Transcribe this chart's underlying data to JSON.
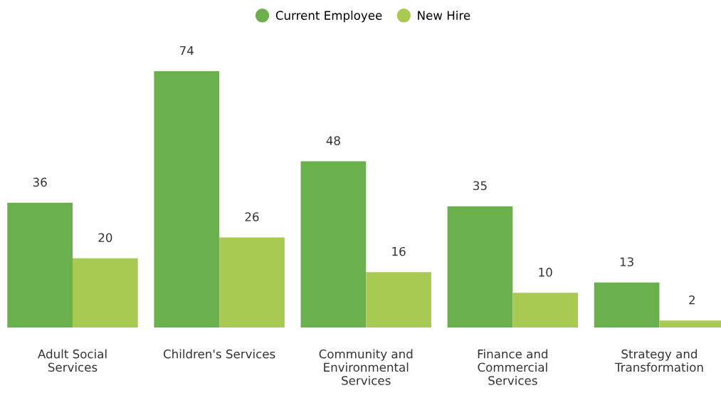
{
  "chart_data": {
    "type": "bar",
    "categories": [
      "Adult Social\nServices",
      "Children's Services",
      "Community and\nEnvironmental\nServices",
      "Finance and\nCommercial\nServices",
      "Strategy and\nTransformation"
    ],
    "series": [
      {
        "name": "Current Employee",
        "color": "#6ab04c",
        "values": [
          36,
          74,
          48,
          35,
          13
        ]
      },
      {
        "name": "New Hire",
        "color": "#a8c952",
        "values": [
          20,
          26,
          16,
          10,
          2
        ]
      }
    ],
    "data_labels": true,
    "legend": "top",
    "grid": false,
    "tick_labels": "x"
  }
}
